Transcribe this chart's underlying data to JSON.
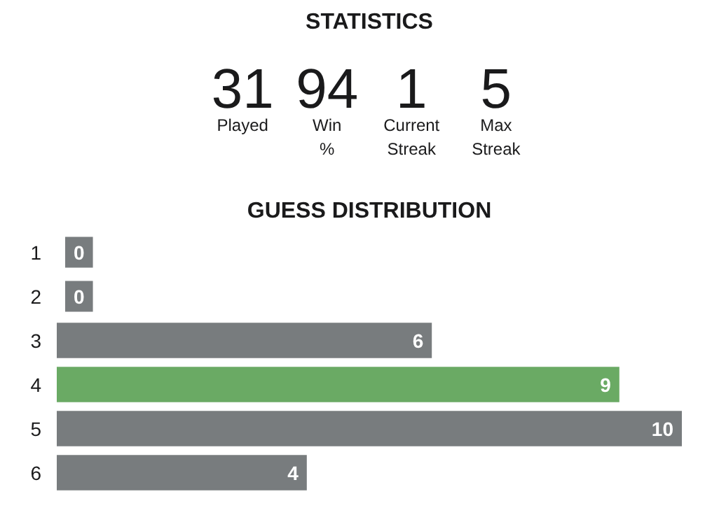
{
  "chart_data": [
    {
      "type": "other",
      "title": "STATISTICS",
      "categories": [
        "Played",
        "Win %",
        "Current Streak",
        "Max Streak"
      ],
      "values": [
        31,
        94,
        1,
        5
      ],
      "data_labels": true
    },
    {
      "type": "bar",
      "title": "GUESS DISTRIBUTION",
      "orientation": "horizontal",
      "categories": [
        "1",
        "2",
        "3",
        "4",
        "5",
        "6"
      ],
      "values": [
        0,
        0,
        6,
        9,
        10,
        4
      ],
      "colors": [
        "#787c7e",
        "#787c7e",
        "#787c7e",
        "#6aaa64",
        "#787c7e",
        "#787c7e"
      ],
      "data_labels": true
    }
  ]
}
